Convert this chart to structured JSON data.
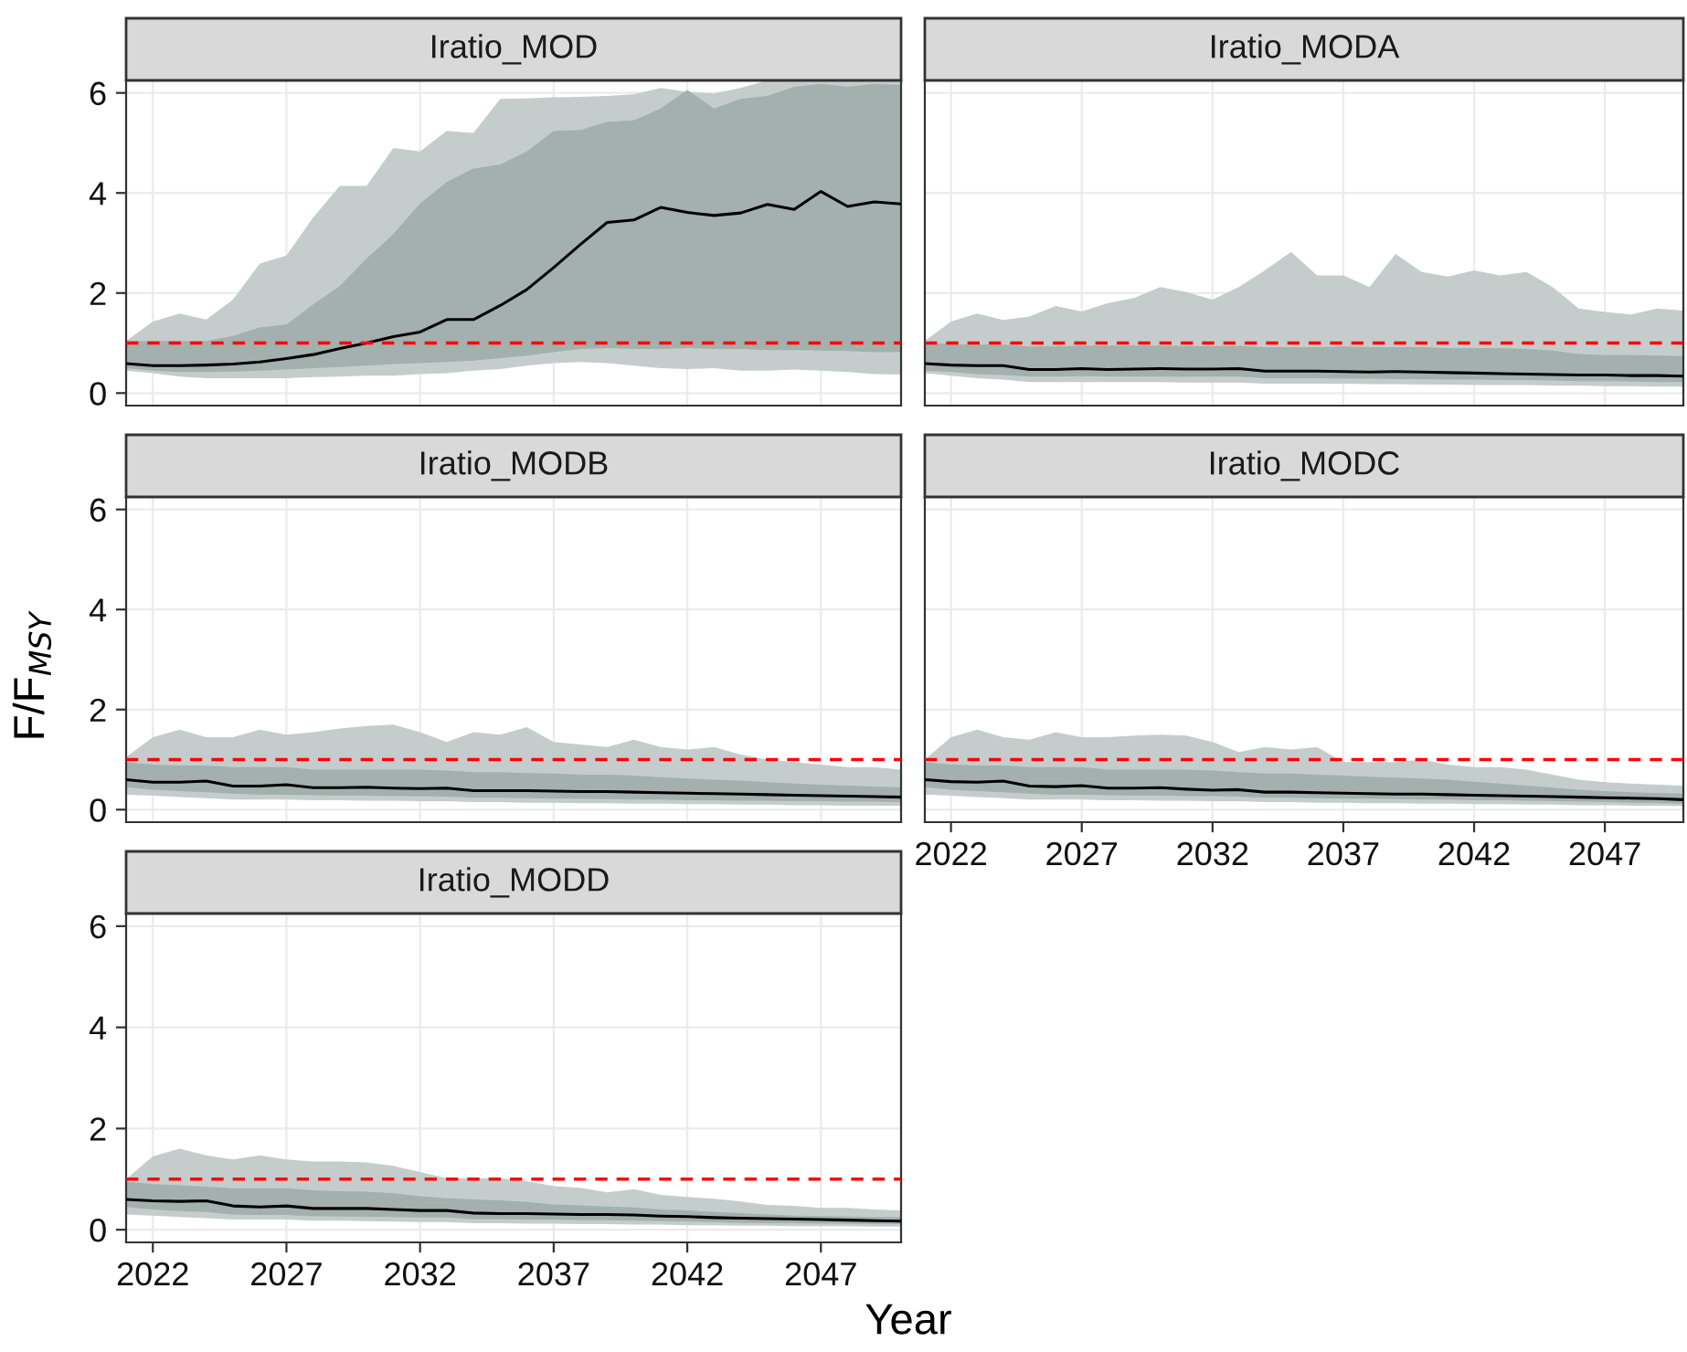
{
  "chart_data": [
    {
      "type": "line",
      "title": "Iratio_MOD",
      "x": [
        2021,
        2022,
        2023,
        2024,
        2025,
        2026,
        2027,
        2028,
        2029,
        2030,
        2031,
        2032,
        2033,
        2034,
        2035,
        2036,
        2037,
        2038,
        2039,
        2040,
        2041,
        2042,
        2043,
        2044,
        2045,
        2046,
        2047,
        2048,
        2049,
        2050
      ],
      "series": [
        {
          "type": "line",
          "color": "#c4cdcb",
          "values": [
            null,
            null,
            null,
            null,
            null,
            null,
            null,
            null,
            null,
            null,
            null,
            null,
            null,
            null,
            null,
            null,
            null,
            null,
            null,
            null,
            null,
            null,
            null,
            null,
            null,
            null,
            null,
            null,
            null,
            null
          ],
          "lower": [
            0.45,
            0.4,
            0.33,
            0.3,
            0.3,
            0.3,
            0.3,
            0.32,
            0.33,
            0.35,
            0.35,
            0.38,
            0.4,
            0.45,
            0.48,
            0.55,
            0.6,
            0.62,
            0.6,
            0.55,
            0.5,
            0.48,
            0.5,
            0.45,
            0.45,
            0.47,
            0.45,
            0.42,
            0.38,
            0.37
          ],
          "upper": [
            1.04,
            1.43,
            1.59,
            1.47,
            1.87,
            2.59,
            2.75,
            3.51,
            4.14,
            4.14,
            4.9,
            4.83,
            5.24,
            5.2,
            5.88,
            5.89,
            5.91,
            5.92,
            5.94,
            5.97,
            6.1,
            6.02,
            5.99,
            6.1,
            6.25,
            6.25,
            6.25,
            6.25,
            6.25,
            6.25
          ]
        },
        {
          "type": "line",
          "color": "#000000",
          "values": [
            0.59,
            0.55,
            0.55,
            0.56,
            0.58,
            0.62,
            0.69,
            0.77,
            0.89,
            1.0,
            1.13,
            1.22,
            1.47,
            1.47,
            1.75,
            2.07,
            2.51,
            2.97,
            3.41,
            3.46,
            3.71,
            3.61,
            3.55,
            3.6,
            3.77,
            3.67,
            4.03,
            3.73,
            3.82,
            3.78
          ],
          "lower": [
            0.5,
            0.45,
            0.42,
            0.42,
            0.43,
            0.45,
            0.47,
            0.5,
            0.52,
            0.55,
            0.58,
            0.6,
            0.62,
            0.65,
            0.7,
            0.75,
            0.82,
            0.88,
            0.9,
            0.88,
            0.88,
            0.9,
            0.88,
            0.88,
            0.86,
            0.86,
            0.85,
            0.84,
            0.82,
            0.82
          ],
          "upper": [
            1.04,
            1.04,
            1.04,
            1.04,
            1.14,
            1.31,
            1.37,
            1.77,
            2.14,
            2.69,
            3.18,
            3.79,
            4.22,
            4.49,
            4.57,
            4.83,
            5.24,
            5.26,
            5.42,
            5.45,
            5.69,
            6.06,
            5.69,
            5.88,
            5.94,
            6.12,
            6.18,
            6.12,
            6.18,
            6.16
          ]
        }
      ],
      "xlim": [
        2021,
        2050
      ],
      "ylim": [
        -0.25,
        6.25
      ],
      "yticks": [
        0,
        2,
        4,
        6
      ],
      "xticks": [
        2022,
        2027,
        2032,
        2037,
        2042,
        2047
      ],
      "ref_lines": [
        {
          "axis": "y",
          "value": 1,
          "color": "#ff0000",
          "line_style": "dashed"
        }
      ],
      "grid": true,
      "tick_labels": "y"
    },
    {
      "type": "line",
      "title": "Iratio_MODA",
      "x": [
        2021,
        2022,
        2023,
        2024,
        2025,
        2026,
        2027,
        2028,
        2029,
        2030,
        2031,
        2032,
        2033,
        2034,
        2035,
        2036,
        2037,
        2038,
        2039,
        2040,
        2041,
        2042,
        2043,
        2044,
        2045,
        2046,
        2047,
        2048,
        2049,
        2050
      ],
      "series": [
        {
          "type": "line",
          "color": "#c4cdcb",
          "values": [
            null,
            null,
            null,
            null,
            null,
            null,
            null,
            null,
            null,
            null,
            null,
            null,
            null,
            null,
            null,
            null,
            null,
            null,
            null,
            null,
            null,
            null,
            null,
            null,
            null,
            null,
            null,
            null,
            null,
            null
          ],
          "lower": [
            0.4,
            0.35,
            0.3,
            0.27,
            0.22,
            0.22,
            0.22,
            0.22,
            0.22,
            0.22,
            0.21,
            0.21,
            0.21,
            0.19,
            0.19,
            0.19,
            0.19,
            0.18,
            0.18,
            0.17,
            0.17,
            0.16,
            0.16,
            0.16,
            0.15,
            0.15,
            0.14,
            0.14,
            0.13,
            0.13
          ],
          "upper": [
            1.04,
            1.43,
            1.59,
            1.46,
            1.53,
            1.74,
            1.63,
            1.8,
            1.9,
            2.12,
            2.02,
            1.87,
            2.12,
            2.45,
            2.82,
            2.35,
            2.35,
            2.12,
            2.78,
            2.42,
            2.33,
            2.45,
            2.35,
            2.42,
            2.12,
            1.69,
            1.62,
            1.57,
            1.69,
            1.65
          ]
        },
        {
          "type": "line",
          "color": "#000000",
          "values": [
            0.59,
            0.56,
            0.55,
            0.55,
            0.47,
            0.47,
            0.49,
            0.47,
            0.48,
            0.49,
            0.48,
            0.48,
            0.49,
            0.44,
            0.44,
            0.44,
            0.43,
            0.42,
            0.43,
            0.42,
            0.41,
            0.4,
            0.39,
            0.38,
            0.37,
            0.36,
            0.36,
            0.35,
            0.35,
            0.34
          ],
          "lower": [
            0.45,
            0.42,
            0.38,
            0.36,
            0.33,
            0.33,
            0.34,
            0.33,
            0.33,
            0.33,
            0.33,
            0.33,
            0.33,
            0.3,
            0.3,
            0.3,
            0.29,
            0.29,
            0.28,
            0.28,
            0.27,
            0.27,
            0.26,
            0.26,
            0.25,
            0.24,
            0.24,
            0.23,
            0.22,
            0.22
          ],
          "upper": [
            1.0,
            0.98,
            0.97,
            0.97,
            0.93,
            0.93,
            0.95,
            0.95,
            0.95,
            0.95,
            0.94,
            0.94,
            0.94,
            0.92,
            0.92,
            0.92,
            0.93,
            0.92,
            0.92,
            0.92,
            0.9,
            0.9,
            0.9,
            0.88,
            0.85,
            0.78,
            0.76,
            0.76,
            0.75,
            0.74
          ]
        }
      ],
      "xlim": [
        2021,
        2050
      ],
      "ylim": [
        -0.25,
        6.25
      ],
      "yticks": [
        0,
        2,
        4,
        6
      ],
      "xticks": [
        2022,
        2027,
        2032,
        2037,
        2042,
        2047
      ],
      "ref_lines": [
        {
          "axis": "y",
          "value": 1,
          "color": "#ff0000",
          "line_style": "dashed"
        }
      ],
      "grid": true,
      "tick_labels": false
    },
    {
      "type": "line",
      "title": "Iratio_MODB",
      "ylabel": "F/F$_{MSY}$",
      "x": [
        2021,
        2022,
        2023,
        2024,
        2025,
        2026,
        2027,
        2028,
        2029,
        2030,
        2031,
        2032,
        2033,
        2034,
        2035,
        2036,
        2037,
        2038,
        2039,
        2040,
        2041,
        2042,
        2043,
        2044,
        2045,
        2046,
        2047,
        2048,
        2049,
        2050
      ],
      "series": [
        {
          "type": "line",
          "color": "#c4cdcb",
          "values": [
            null,
            null,
            null,
            null,
            null,
            null,
            null,
            null,
            null,
            null,
            null,
            null,
            null,
            null,
            null,
            null,
            null,
            null,
            null,
            null,
            null,
            null,
            null,
            null,
            null,
            null,
            null,
            null,
            null,
            null
          ],
          "lower": [
            0.3,
            0.28,
            0.25,
            0.23,
            0.2,
            0.2,
            0.2,
            0.19,
            0.19,
            0.18,
            0.18,
            0.17,
            0.17,
            0.15,
            0.15,
            0.14,
            0.14,
            0.13,
            0.13,
            0.12,
            0.12,
            0.11,
            0.11,
            0.1,
            0.1,
            0.09,
            0.09,
            0.08,
            0.08,
            0.08
          ],
          "upper": [
            1.05,
            1.45,
            1.6,
            1.45,
            1.45,
            1.6,
            1.5,
            1.55,
            1.62,
            1.67,
            1.7,
            1.55,
            1.35,
            1.55,
            1.5,
            1.65,
            1.35,
            1.3,
            1.25,
            1.4,
            1.25,
            1.2,
            1.25,
            1.1,
            1.0,
            0.95,
            0.9,
            0.85,
            0.85,
            0.8
          ]
        },
        {
          "type": "line",
          "color": "#000000",
          "values": [
            0.6,
            0.55,
            0.55,
            0.57,
            0.47,
            0.47,
            0.5,
            0.44,
            0.44,
            0.45,
            0.43,
            0.42,
            0.43,
            0.38,
            0.38,
            0.38,
            0.37,
            0.36,
            0.36,
            0.35,
            0.34,
            0.33,
            0.32,
            0.31,
            0.3,
            0.29,
            0.28,
            0.27,
            0.26,
            0.25
          ],
          "lower": [
            0.45,
            0.4,
            0.37,
            0.35,
            0.32,
            0.3,
            0.3,
            0.29,
            0.28,
            0.28,
            0.27,
            0.27,
            0.26,
            0.24,
            0.24,
            0.23,
            0.22,
            0.22,
            0.21,
            0.2,
            0.2,
            0.19,
            0.19,
            0.18,
            0.18,
            0.17,
            0.17,
            0.16,
            0.16,
            0.15
          ],
          "upper": [
            0.95,
            0.9,
            0.88,
            0.88,
            0.85,
            0.85,
            0.85,
            0.8,
            0.8,
            0.8,
            0.8,
            0.8,
            0.78,
            0.75,
            0.75,
            0.73,
            0.72,
            0.7,
            0.7,
            0.68,
            0.65,
            0.62,
            0.6,
            0.58,
            0.55,
            0.52,
            0.5,
            0.48,
            0.46,
            0.45
          ]
        }
      ],
      "xlim": [
        2021,
        2050
      ],
      "ylim": [
        -0.25,
        6.25
      ],
      "yticks": [
        0,
        2,
        4,
        6
      ],
      "xticks": [
        2022,
        2027,
        2032,
        2037,
        2042,
        2047
      ],
      "ref_lines": [
        {
          "axis": "y",
          "value": 1,
          "color": "#ff0000",
          "line_style": "dashed"
        }
      ],
      "grid": true,
      "tick_labels": "y"
    },
    {
      "type": "line",
      "title": "Iratio_MODC",
      "x": [
        2021,
        2022,
        2023,
        2024,
        2025,
        2026,
        2027,
        2028,
        2029,
        2030,
        2031,
        2032,
        2033,
        2034,
        2035,
        2036,
        2037,
        2038,
        2039,
        2040,
        2041,
        2042,
        2043,
        2044,
        2045,
        2046,
        2047,
        2048,
        2049,
        2050
      ],
      "series": [
        {
          "type": "line",
          "color": "#c4cdcb",
          "values": [
            null,
            null,
            null,
            null,
            null,
            null,
            null,
            null,
            null,
            null,
            null,
            null,
            null,
            null,
            null,
            null,
            null,
            null,
            null,
            null,
            null,
            null,
            null,
            null,
            null,
            null,
            null,
            null,
            null,
            null
          ],
          "lower": [
            0.3,
            0.28,
            0.25,
            0.23,
            0.2,
            0.2,
            0.2,
            0.19,
            0.19,
            0.18,
            0.18,
            0.17,
            0.17,
            0.15,
            0.15,
            0.14,
            0.14,
            0.13,
            0.13,
            0.12,
            0.12,
            0.11,
            0.11,
            0.1,
            0.1,
            0.09,
            0.09,
            0.08,
            0.08,
            0.07
          ],
          "upper": [
            1.0,
            1.45,
            1.6,
            1.45,
            1.4,
            1.55,
            1.45,
            1.45,
            1.48,
            1.5,
            1.48,
            1.35,
            1.15,
            1.25,
            1.2,
            1.25,
            0.95,
            0.95,
            0.95,
            1.0,
            0.9,
            0.85,
            0.85,
            0.8,
            0.7,
            0.6,
            0.55,
            0.52,
            0.5,
            0.48
          ]
        },
        {
          "type": "line",
          "color": "#000000",
          "values": [
            0.6,
            0.56,
            0.55,
            0.57,
            0.47,
            0.46,
            0.48,
            0.43,
            0.43,
            0.44,
            0.41,
            0.39,
            0.4,
            0.35,
            0.35,
            0.34,
            0.33,
            0.32,
            0.31,
            0.31,
            0.3,
            0.29,
            0.28,
            0.27,
            0.26,
            0.25,
            0.24,
            0.23,
            0.22,
            0.2
          ],
          "lower": [
            0.45,
            0.4,
            0.37,
            0.35,
            0.32,
            0.3,
            0.3,
            0.29,
            0.28,
            0.28,
            0.27,
            0.27,
            0.26,
            0.24,
            0.24,
            0.23,
            0.22,
            0.22,
            0.21,
            0.2,
            0.2,
            0.19,
            0.19,
            0.18,
            0.17,
            0.16,
            0.15,
            0.14,
            0.13,
            0.12
          ],
          "upper": [
            0.95,
            0.9,
            0.88,
            0.88,
            0.85,
            0.85,
            0.85,
            0.8,
            0.8,
            0.8,
            0.8,
            0.78,
            0.75,
            0.72,
            0.72,
            0.7,
            0.68,
            0.66,
            0.64,
            0.62,
            0.6,
            0.56,
            0.52,
            0.48,
            0.44,
            0.4,
            0.37,
            0.35,
            0.33,
            0.32
          ]
        }
      ],
      "xlim": [
        2021,
        2050
      ],
      "ylim": [
        -0.25,
        6.25
      ],
      "yticks": [
        0,
        2,
        4,
        6
      ],
      "xticks": [
        2022,
        2027,
        2032,
        2037,
        2042,
        2047
      ],
      "ref_lines": [
        {
          "axis": "y",
          "value": 1,
          "color": "#ff0000",
          "line_style": "dashed"
        }
      ],
      "grid": true,
      "tick_labels": "x"
    },
    {
      "type": "line",
      "title": "Iratio_MODD",
      "xlabel": "Year",
      "x": [
        2021,
        2022,
        2023,
        2024,
        2025,
        2026,
        2027,
        2028,
        2029,
        2030,
        2031,
        2032,
        2033,
        2034,
        2035,
        2036,
        2037,
        2038,
        2039,
        2040,
        2041,
        2042,
        2043,
        2044,
        2045,
        2046,
        2047,
        2048,
        2049,
        2050
      ],
      "series": [
        {
          "type": "line",
          "color": "#c4cdcb",
          "values": [
            null,
            null,
            null,
            null,
            null,
            null,
            null,
            null,
            null,
            null,
            null,
            null,
            null,
            null,
            null,
            null,
            null,
            null,
            null,
            null,
            null,
            null,
            null,
            null,
            null,
            null,
            null,
            null,
            null,
            null
          ],
          "lower": [
            0.3,
            0.28,
            0.25,
            0.23,
            0.2,
            0.2,
            0.2,
            0.18,
            0.18,
            0.17,
            0.16,
            0.15,
            0.15,
            0.13,
            0.13,
            0.12,
            0.12,
            0.11,
            0.11,
            0.1,
            0.1,
            0.09,
            0.09,
            0.08,
            0.08,
            0.07,
            0.07,
            0.07,
            0.06,
            0.06
          ],
          "upper": [
            1.0,
            1.45,
            1.6,
            1.47,
            1.39,
            1.47,
            1.39,
            1.35,
            1.35,
            1.33,
            1.26,
            1.14,
            1.02,
            1.02,
            1.02,
            0.96,
            0.86,
            0.83,
            0.74,
            0.8,
            0.69,
            0.65,
            0.61,
            0.56,
            0.49,
            0.47,
            0.43,
            0.43,
            0.4,
            0.38
          ]
        },
        {
          "type": "line",
          "color": "#000000",
          "values": [
            0.6,
            0.57,
            0.56,
            0.57,
            0.47,
            0.45,
            0.47,
            0.42,
            0.42,
            0.42,
            0.4,
            0.38,
            0.38,
            0.33,
            0.32,
            0.32,
            0.31,
            0.3,
            0.3,
            0.29,
            0.27,
            0.26,
            0.24,
            0.23,
            0.22,
            0.21,
            0.2,
            0.19,
            0.18,
            0.17
          ],
          "lower": [
            0.45,
            0.4,
            0.37,
            0.35,
            0.3,
            0.29,
            0.29,
            0.27,
            0.26,
            0.26,
            0.25,
            0.24,
            0.24,
            0.21,
            0.21,
            0.2,
            0.2,
            0.19,
            0.19,
            0.18,
            0.17,
            0.16,
            0.15,
            0.14,
            0.13,
            0.13,
            0.12,
            0.12,
            0.11,
            0.11
          ],
          "upper": [
            0.95,
            0.9,
            0.88,
            0.85,
            0.82,
            0.82,
            0.82,
            0.78,
            0.76,
            0.75,
            0.72,
            0.66,
            0.62,
            0.6,
            0.58,
            0.55,
            0.5,
            0.48,
            0.46,
            0.44,
            0.4,
            0.38,
            0.35,
            0.33,
            0.3,
            0.28,
            0.27,
            0.26,
            0.25,
            0.25
          ]
        }
      ],
      "xlim": [
        2021,
        2050
      ],
      "ylim": [
        -0.25,
        6.25
      ],
      "yticks": [
        0,
        2,
        4,
        6
      ],
      "xticks": [
        2022,
        2027,
        2032,
        2037,
        2042,
        2047
      ],
      "ref_lines": [
        {
          "axis": "y",
          "value": 1,
          "color": "#ff0000",
          "line_style": "dashed"
        }
      ],
      "grid": true
    }
  ]
}
